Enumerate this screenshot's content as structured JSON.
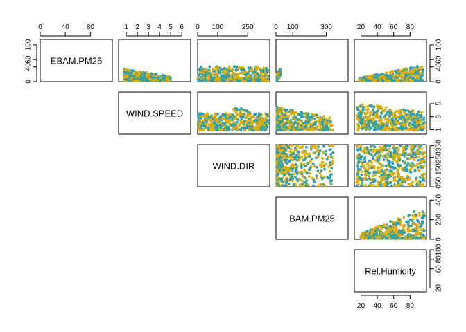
{
  "chart_data": {
    "type": "scatter",
    "subtype": "pairs-upper-panels",
    "variables": [
      "EBAM.PM25",
      "WIND.SPEED",
      "WIND.DIR",
      "BAM.PM25",
      "Rel.Humidity"
    ],
    "ranges": {
      "EBAM.PM25": [
        0,
        115
      ],
      "WIND.SPEED": [
        0.3,
        6.8
      ],
      "WIND.DIR": [
        0,
        360
      ],
      "BAM.PM25": [
        0,
        430
      ],
      "Rel.Humidity": [
        12,
        100
      ]
    },
    "ticks": {
      "EBAM.PM25": [
        0,
        40,
        80
      ],
      "WIND.SPEED": [
        1,
        2,
        3,
        4,
        5,
        6
      ],
      "WIND.DIR": [
        0,
        100,
        250
      ],
      "BAM.PM25": [
        0,
        100,
        300
      ],
      "Rel.Humidity": [
        20,
        40,
        60,
        80
      ]
    },
    "right_ticks": {
      "EBAM.PM25": [
        0,
        40,
        60,
        100
      ],
      "WIND.SPEED": [
        1,
        3,
        5
      ],
      "WIND.DIR": [
        0,
        50,
        150,
        250,
        350
      ],
      "BAM.PM25": [
        0,
        200,
        400
      ],
      "Rel.Humidity": [
        20,
        60,
        80,
        100
      ]
    },
    "series": [
      {
        "color": "#e6ac00"
      },
      {
        "color": "#2aa0b0"
      }
    ],
    "grid": false,
    "legend": "none"
  }
}
